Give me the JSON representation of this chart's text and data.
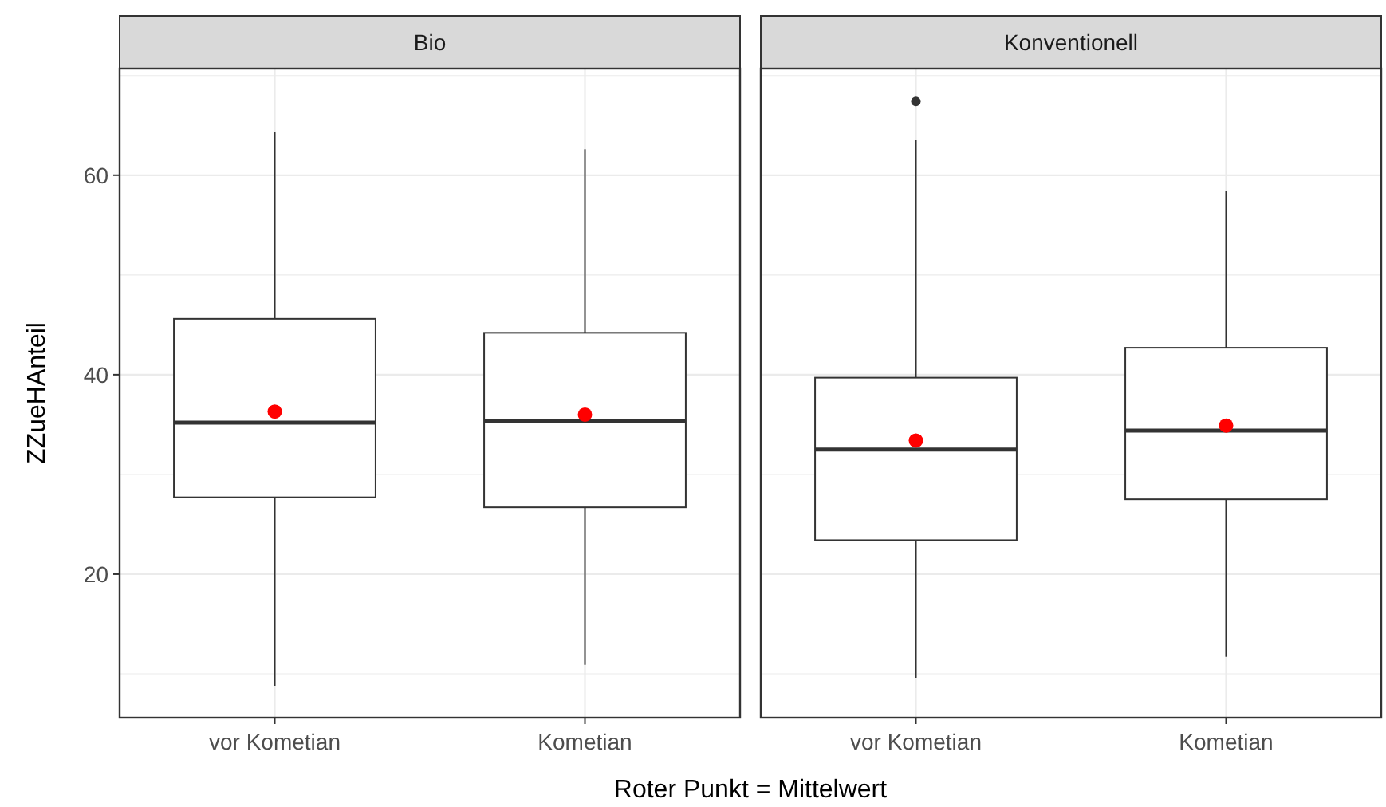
{
  "chart_data": [
    {
      "type": "box",
      "title": "Bio",
      "ylabel": "ZZueHAnteil",
      "categories": [
        "vor Kometian",
        "Kometian"
      ],
      "ylim": [
        5.6,
        70.7
      ],
      "yticks": [
        {
          "value": 10,
          "label": null
        },
        20,
        {
          "value": 30,
          "label": null
        },
        40,
        {
          "value": 50,
          "label": null
        },
        60,
        {
          "value": 70,
          "label": null
        }
      ],
      "grid": true,
      "boxes": [
        {
          "low": 8.8,
          "q1": 27.7,
          "median": 35.2,
          "q3": 45.6,
          "high": 64.3,
          "mean": 36.3
        },
        {
          "low": 10.9,
          "q1": 26.7,
          "median": 35.4,
          "q3": 44.2,
          "high": 62.6,
          "mean": 36.0
        }
      ],
      "annotations": [
        "Roter Punkt = Mittelwert"
      ]
    },
    {
      "type": "box",
      "title": "Konventionell",
      "categories": [
        "vor Kometian",
        "Kometian"
      ],
      "ylim": [
        5.6,
        70.7
      ],
      "yticks": [
        {
          "value": 10,
          "label": null
        },
        20,
        {
          "value": 30,
          "label": null
        },
        40,
        {
          "value": 50,
          "label": null
        },
        60,
        {
          "value": 70,
          "label": null
        }
      ],
      "grid": true,
      "tick_labels": "x",
      "boxes": [
        {
          "low": 9.6,
          "q1": 23.4,
          "median": 32.5,
          "q3": 39.7,
          "high": 63.5,
          "mean": 33.4,
          "outliers": [
            67.4
          ]
        },
        {
          "low": 11.7,
          "q1": 27.5,
          "median": 34.4,
          "q3": 42.7,
          "high": 58.4,
          "mean": 34.9
        }
      ]
    }
  ]
}
